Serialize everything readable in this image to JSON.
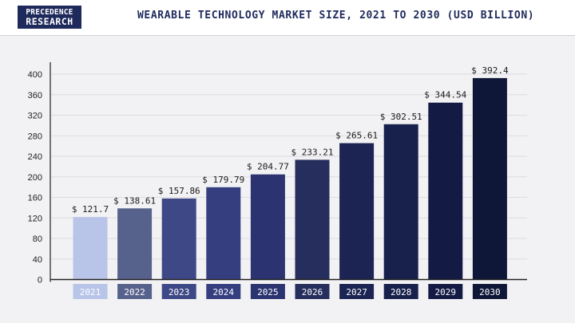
{
  "header": {
    "logo_line1": "PRECEDENCE",
    "logo_line2": "RESEARCH",
    "title": "WEARABLE TECHNOLOGY MARKET SIZE, 2021 TO 2030 (USD BILLION)"
  },
  "chart_data": {
    "type": "bar",
    "title": "WEARABLE TECHNOLOGY MARKET SIZE, 2021 TO 2030 (USD BILLION)",
    "xlabel": "",
    "ylabel": "",
    "categories": [
      "2021",
      "2022",
      "2023",
      "2024",
      "2025",
      "2026",
      "2027",
      "2028",
      "2029",
      "2030"
    ],
    "values": [
      121.7,
      138.61,
      157.86,
      179.79,
      204.77,
      233.21,
      265.61,
      302.51,
      344.54,
      392.4
    ],
    "data_labels": [
      "$ 121.7",
      "$ 138.61",
      "$ 157.86",
      "$ 179.79",
      "$ 204.77",
      "$ 233.21",
      "$ 265.61",
      "$ 302.51",
      "$ 344.54",
      "$ 392.4"
    ],
    "ylim": [
      0,
      400
    ],
    "yticks": [
      0,
      40,
      80,
      120,
      160,
      200,
      240,
      280,
      320,
      360,
      400
    ],
    "grid": true,
    "legend": "none",
    "colors": [
      "#b8c4e8",
      "#57628c",
      "#3e4886",
      "#353f80",
      "#2b3470",
      "#252e5c",
      "#1b2452",
      "#18214c",
      "#131b44",
      "#0f1738"
    ]
  }
}
